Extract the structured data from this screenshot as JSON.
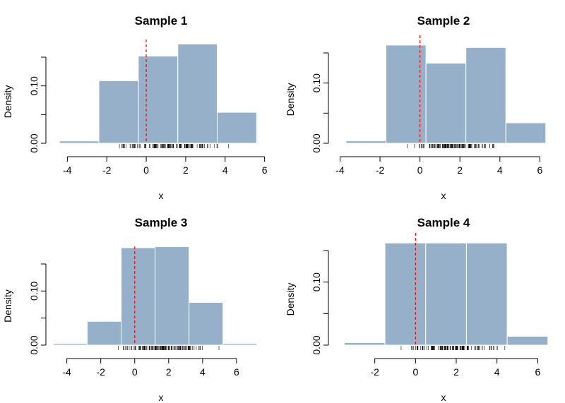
{
  "chart_data": [
    {
      "type": "bar",
      "title": "Sample 1",
      "xlabel": "x",
      "ylabel": "Density",
      "xlim": [
        -4.8,
        6.3
      ],
      "ylim": [
        0,
        0.15
      ],
      "xticks": [
        -4,
        -2,
        0,
        2,
        4,
        6
      ],
      "yticks": [
        0,
        0.05,
        0.1,
        0.15
      ],
      "ytick_labels": [
        "0.00",
        "",
        "0.10",
        ""
      ],
      "bins": [
        {
          "x0": -4.4,
          "x1": -2.4,
          "density": 0.004
        },
        {
          "x0": -2.4,
          "x1": -0.4,
          "density": 0.109
        },
        {
          "x0": -0.4,
          "x1": 1.6,
          "density": 0.152
        },
        {
          "x0": 1.6,
          "x1": 3.6,
          "density": 0.173
        },
        {
          "x0": 3.6,
          "x1": 5.6,
          "density": 0.054
        }
      ],
      "reference_line": 0,
      "rug": {
        "min": -2.2,
        "max": 4.9
      }
    },
    {
      "type": "bar",
      "title": "Sample 2",
      "xlabel": "x",
      "ylabel": "Density",
      "xlim": [
        -4.3,
        6.2
      ],
      "ylim": [
        0,
        0.15
      ],
      "xticks": [
        -4,
        -2,
        0,
        2,
        4,
        6
      ],
      "yticks": [
        0,
        0.05,
        0.1,
        0.15
      ],
      "ytick_labels": [
        "0.00",
        "",
        "0.10",
        ""
      ],
      "bins": [
        {
          "x0": -3.7,
          "x1": -1.7,
          "density": 0.004
        },
        {
          "x0": -1.7,
          "x1": 0.3,
          "density": 0.163
        },
        {
          "x0": 0.3,
          "x1": 2.3,
          "density": 0.133
        },
        {
          "x0": 2.3,
          "x1": 4.3,
          "density": 0.159
        },
        {
          "x0": 4.3,
          "x1": 6.3,
          "density": 0.034
        }
      ],
      "reference_line": 0,
      "rug": {
        "min": -1.5,
        "max": 5.0
      }
    },
    {
      "type": "bar",
      "title": "Sample 3",
      "xlabel": "x",
      "ylabel": "Density",
      "xlim": [
        -4.9,
        7.5
      ],
      "ylim": [
        0,
        0.15
      ],
      "xticks": [
        -4,
        -2,
        0,
        2,
        4,
        6
      ],
      "yticks": [
        0,
        0.05,
        0.1,
        0.15
      ],
      "ytick_labels": [
        "0.00",
        "",
        "0.10",
        ""
      ],
      "bins": [
        {
          "x0": -4.8,
          "x1": -2.8,
          "density": 0.003
        },
        {
          "x0": -2.8,
          "x1": -0.8,
          "density": 0.044
        },
        {
          "x0": -0.8,
          "x1": 1.2,
          "density": 0.18
        },
        {
          "x0": 1.2,
          "x1": 3.2,
          "density": 0.182
        },
        {
          "x0": 3.2,
          "x1": 5.2,
          "density": 0.079
        },
        {
          "x0": 5.2,
          "x1": 7.2,
          "density": 0.003
        }
      ],
      "reference_line": 0,
      "rug": {
        "min": -2.0,
        "max": 5.4
      }
    },
    {
      "type": "bar",
      "title": "Sample 4",
      "xlabel": "x",
      "ylabel": "Density",
      "xlim": [
        -4.0,
        6.3
      ],
      "ylim": [
        0,
        0.15
      ],
      "xticks": [
        -2,
        0,
        2,
        4,
        6
      ],
      "yticks": [
        0,
        0.05,
        0.1,
        0.15
      ],
      "ytick_labels": [
        "0.00",
        "",
        "0.10",
        ""
      ],
      "bins": [
        {
          "x0": -3.5,
          "x1": -1.5,
          "density": 0.004
        },
        {
          "x0": -1.5,
          "x1": 0.5,
          "density": 0.162
        },
        {
          "x0": 0.5,
          "x1": 2.5,
          "density": 0.162
        },
        {
          "x0": 2.5,
          "x1": 4.5,
          "density": 0.162
        },
        {
          "x0": 4.5,
          "x1": 6.5,
          "density": 0.014
        }
      ],
      "reference_line": 0,
      "rug": {
        "min": -1.4,
        "max": 5.1
      }
    }
  ],
  "colors": {
    "bar_fill": "#96b0ca",
    "bar_border": "#ffffff",
    "reference_line": "#ff0000",
    "axis": "#000000"
  }
}
